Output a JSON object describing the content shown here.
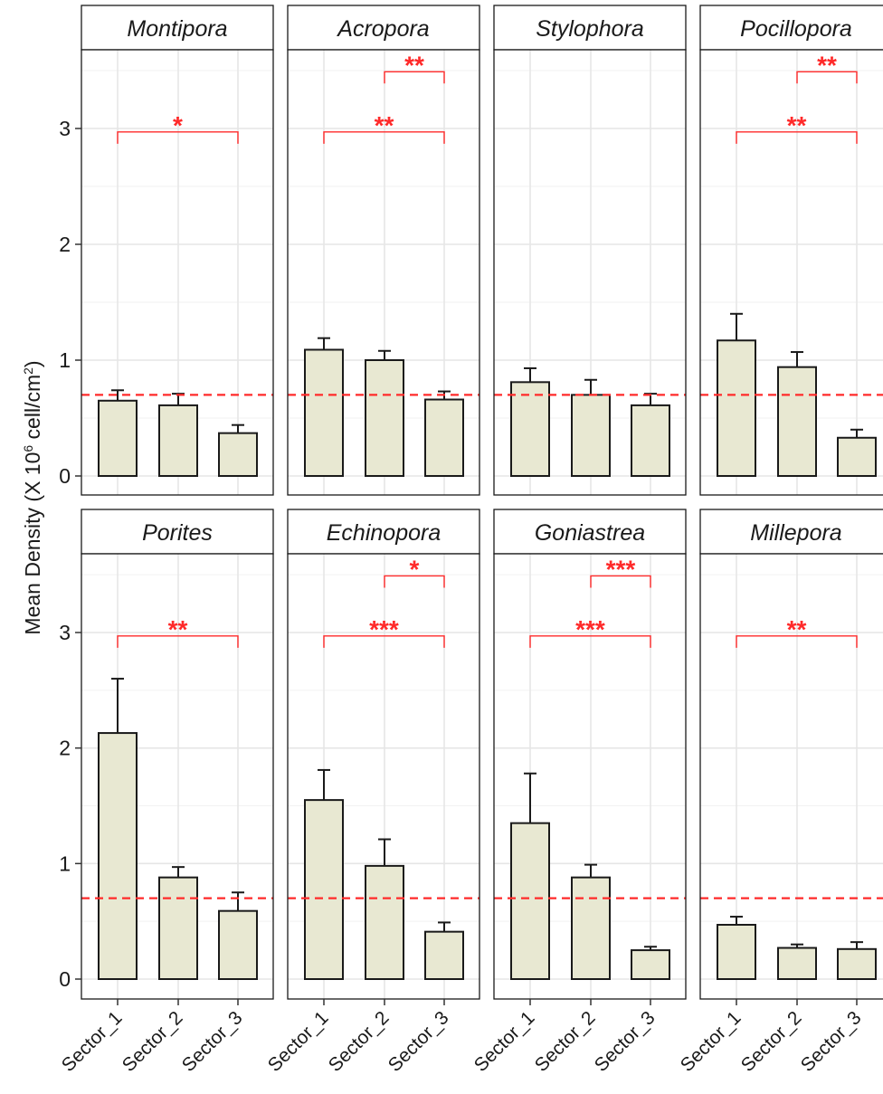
{
  "chart_data": {
    "type": "bar",
    "layout": "facet grid, 2 rows x 4 columns",
    "categories": [
      "Sector_1",
      "Sector_2",
      "Sector_3"
    ],
    "ylabel": "Mean Density  (X 10^6 cell/cm^2)",
    "ylabel_parts": {
      "prefix": "Mean Density  (X 10",
      "exp1": "6",
      "middle": " cell/cm",
      "exp2": "2",
      "suffix": ")"
    },
    "yticks": [
      "0",
      "1",
      "2",
      "3"
    ],
    "ylim": [
      -0.15,
      3.67
    ],
    "grid": true,
    "reference_line": {
      "value": 0.7,
      "style": "dashed",
      "color": "#ff2a2a"
    },
    "bar_fill": "#e8e8d2",
    "bar_outline": "#1a1a1a",
    "significance_color": "#ff2a2a",
    "facets": [
      {
        "name": "Montipora",
        "values": [
          0.65,
          0.61,
          0.37
        ],
        "errors": [
          0.09,
          0.1,
          0.07
        ],
        "brackets": [
          {
            "from": "Sector_1",
            "to": "Sector_3",
            "y": 2.97,
            "label": "*"
          }
        ]
      },
      {
        "name": "Acropora",
        "values": [
          1.09,
          1.0,
          0.66
        ],
        "errors": [
          0.1,
          0.08,
          0.07
        ],
        "brackets": [
          {
            "from": "Sector_2",
            "to": "Sector_3",
            "y": 3.49,
            "label": "**"
          },
          {
            "from": "Sector_1",
            "to": "Sector_3",
            "y": 2.97,
            "label": "**"
          }
        ]
      },
      {
        "name": "Stylophora",
        "values": [
          0.81,
          0.7,
          0.61
        ],
        "errors": [
          0.12,
          0.13,
          0.1
        ],
        "brackets": []
      },
      {
        "name": "Pocillopora",
        "values": [
          1.17,
          0.94,
          0.33
        ],
        "errors": [
          0.23,
          0.13,
          0.07
        ],
        "brackets": [
          {
            "from": "Sector_2",
            "to": "Sector_3",
            "y": 3.49,
            "label": "**"
          },
          {
            "from": "Sector_1",
            "to": "Sector_3",
            "y": 2.97,
            "label": "**"
          }
        ]
      },
      {
        "name": "Porites",
        "values": [
          2.13,
          0.88,
          0.59
        ],
        "errors": [
          0.47,
          0.09,
          0.16
        ],
        "brackets": [
          {
            "from": "Sector_1",
            "to": "Sector_3",
            "y": 2.97,
            "label": "**"
          }
        ]
      },
      {
        "name": "Echinopora",
        "values": [
          1.55,
          0.98,
          0.41
        ],
        "errors": [
          0.26,
          0.23,
          0.08
        ],
        "brackets": [
          {
            "from": "Sector_2",
            "to": "Sector_3",
            "y": 3.49,
            "label": "*"
          },
          {
            "from": "Sector_1",
            "to": "Sector_3",
            "y": 2.97,
            "label": "***"
          }
        ]
      },
      {
        "name": "Goniastrea",
        "values": [
          1.35,
          0.88,
          0.25
        ],
        "errors": [
          0.43,
          0.11,
          0.03
        ],
        "brackets": [
          {
            "from": "Sector_2",
            "to": "Sector_3",
            "y": 3.49,
            "label": "***"
          },
          {
            "from": "Sector_1",
            "to": "Sector_3",
            "y": 2.97,
            "label": "***"
          }
        ]
      },
      {
        "name": "Millepora",
        "values": [
          0.47,
          0.27,
          0.26
        ],
        "errors": [
          0.07,
          0.03,
          0.06
        ],
        "brackets": [
          {
            "from": "Sector_1",
            "to": "Sector_3",
            "y": 2.97,
            "label": "**"
          }
        ]
      }
    ]
  }
}
